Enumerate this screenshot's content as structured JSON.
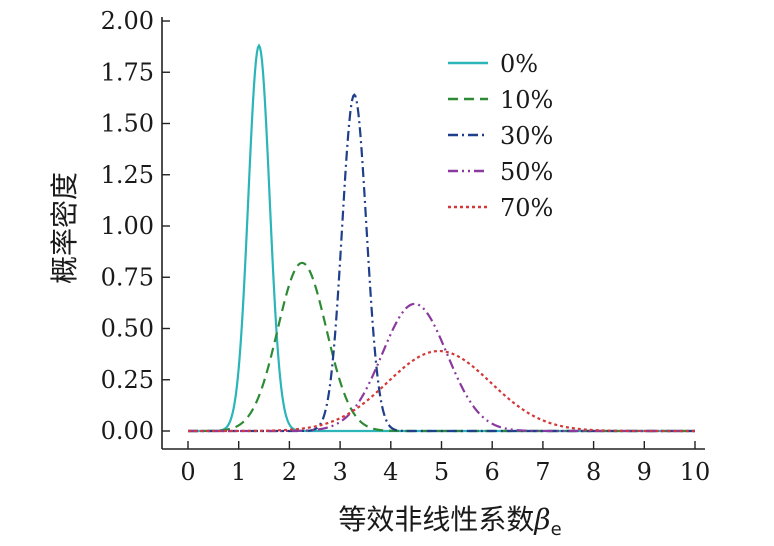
{
  "chart_data": {
    "type": "line",
    "title": "",
    "xlabel": "等效非线性系数",
    "xlabel_symbol": "β",
    "xlabel_subscript": "e",
    "ylabel": "概率密度",
    "xlim": [
      0,
      10
    ],
    "ylim": [
      0,
      2.0
    ],
    "xticks": [
      "0",
      "1",
      "2",
      "3",
      "4",
      "5",
      "6",
      "7",
      "8",
      "9",
      "10"
    ],
    "yticks": [
      "0.00",
      "0.25",
      "0.50",
      "0.75",
      "1.00",
      "1.25",
      "1.50",
      "1.75",
      "2.00"
    ],
    "grid": false,
    "legend_position": "top-right",
    "series": [
      {
        "name": "0%",
        "color": "#2bb5b8",
        "dash": "solid",
        "peak_x": 1.4,
        "peak_y": 1.88,
        "sigma": 0.21
      },
      {
        "name": "10%",
        "color": "#2e8b35",
        "dash": "dashed",
        "peak_x": 2.25,
        "peak_y": 0.82,
        "sigma": 0.48
      },
      {
        "name": "30%",
        "color": "#1f3f8a",
        "dash": "dashdot",
        "peak_x": 3.28,
        "peak_y": 1.64,
        "sigma": 0.24
      },
      {
        "name": "50%",
        "color": "#8a3a9e",
        "dash": "dashdotdot",
        "peak_x": 4.47,
        "peak_y": 0.62,
        "sigma": 0.64
      },
      {
        "name": "70%",
        "color": "#d43838",
        "dash": "dotted",
        "peak_x": 4.95,
        "peak_y": 0.39,
        "sigma": 1.02
      }
    ]
  }
}
